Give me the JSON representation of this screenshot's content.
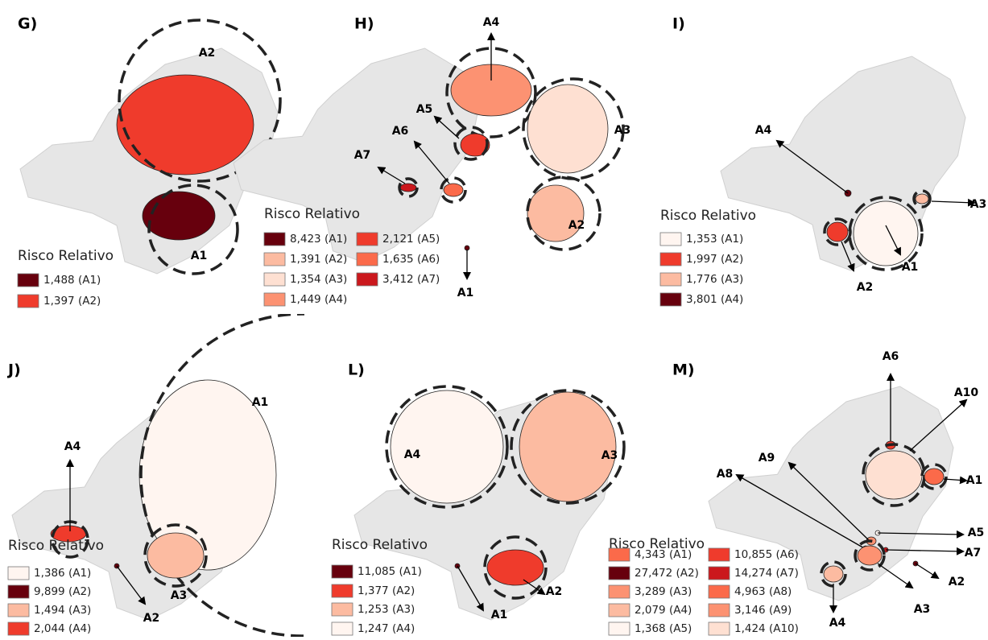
{
  "panels": [
    {
      "letter": "G)",
      "legend_title": "Risco Relativo",
      "legend": [
        {
          "label": "1,488 (A1)",
          "color": "#67000d"
        },
        {
          "label": "1,397 (A2)",
          "color": "#ef3b2c"
        }
      ],
      "clusters": [
        "A2",
        "A1"
      ]
    },
    {
      "letter": "H)",
      "legend_title": "Risco Relativo",
      "legend": [
        {
          "label": "8,423 (A1)",
          "color": "#67000d"
        },
        {
          "label": "1,391 (A2)",
          "color": "#fcbba1"
        },
        {
          "label": "1,354 (A3)",
          "color": "#fee0d2"
        },
        {
          "label": "1,449 (A4)",
          "color": "#fc9272"
        },
        {
          "label": "2,121 (A5)",
          "color": "#ef3b2c"
        },
        {
          "label": "1,635 (A6)",
          "color": "#fb6a4a"
        },
        {
          "label": "3,412 (A7)",
          "color": "#cb181d"
        }
      ],
      "clusters": [
        "A4",
        "A5",
        "A6",
        "A7",
        "A3",
        "A2",
        "A1"
      ]
    },
    {
      "letter": "I)",
      "legend_title": "Risco Relativo",
      "legend": [
        {
          "label": "1,353 (A1)",
          "color": "#fff5f0"
        },
        {
          "label": "1,997 (A2)",
          "color": "#ef3b2c"
        },
        {
          "label": "1,776 (A3)",
          "color": "#fcbba1"
        },
        {
          "label": "3,801 (A4)",
          "color": "#67000d"
        }
      ],
      "clusters": [
        "A4",
        "A3",
        "A1",
        "A2"
      ]
    },
    {
      "letter": "J)",
      "legend_title": "Risco Relativo",
      "legend": [
        {
          "label": "1,386 (A1)",
          "color": "#fff5f0"
        },
        {
          "label": "9,899 (A2)",
          "color": "#67000d"
        },
        {
          "label": "1,494 (A3)",
          "color": "#fcbba1"
        },
        {
          "label": "2,044 (A4)",
          "color": "#ef3b2c"
        }
      ],
      "clusters": [
        "A1",
        "A4",
        "A3",
        "A2"
      ]
    },
    {
      "letter": "L)",
      "legend_title": "Risco Relativo",
      "legend": [
        {
          "label": "11,085 (A1)",
          "color": "#67000d"
        },
        {
          "label": "1,377 (A2)",
          "color": "#ef3b2c"
        },
        {
          "label": "1,253 (A3)",
          "color": "#fcbba1"
        },
        {
          "label": "1,247 (A4)",
          "color": "#fff5f0"
        }
      ],
      "clusters": [
        "A4",
        "A3",
        "A1",
        "A2"
      ]
    },
    {
      "letter": "M)",
      "legend_title": "Risco Relativo",
      "legend": [
        {
          "label": "4,343 (A1)",
          "color": "#fb6a4a"
        },
        {
          "label": "27,472 (A2)",
          "color": "#67000d"
        },
        {
          "label": "3,289 (A3)",
          "color": "#fc9272"
        },
        {
          "label": "2,079 (A4)",
          "color": "#fcbba1"
        },
        {
          "label": "1,368 (A5)",
          "color": "#fff5f0"
        },
        {
          "label": "10,855 (A6)",
          "color": "#ef3b2c"
        },
        {
          "label": "14,274 (A7)",
          "color": "#cb181d"
        },
        {
          "label": "4,963 (A8)",
          "color": "#fb6a4a"
        },
        {
          "label": "3,146 (A9)",
          "color": "#fc9272"
        },
        {
          "label": "1,424 (A10)",
          "color": "#fee0d2"
        }
      ],
      "clusters": [
        "A6",
        "A10",
        "A9",
        "A8",
        "A1",
        "A5",
        "A7",
        "A2",
        "A3",
        "A4"
      ]
    }
  ]
}
